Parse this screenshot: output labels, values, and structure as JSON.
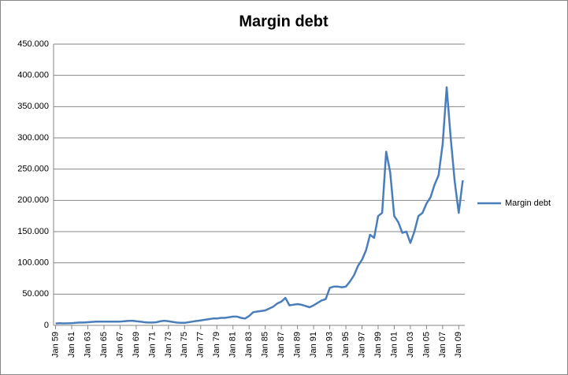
{
  "chart_data": {
    "type": "line",
    "title": "Margin debt",
    "categories": [
      "Jan 59",
      null,
      null,
      null,
      "Jan 61",
      null,
      null,
      null,
      "Jan 63",
      null,
      null,
      null,
      "Jan 65",
      null,
      null,
      null,
      "Jan 67",
      null,
      null,
      null,
      "Jan 69",
      null,
      null,
      null,
      "Jan 71",
      null,
      null,
      null,
      "Jan 73",
      null,
      null,
      null,
      "Jan 75",
      null,
      null,
      null,
      "Jan 77",
      null,
      null,
      null,
      "Jan 79",
      null,
      null,
      null,
      "Jan 81",
      null,
      null,
      null,
      "Jan 83",
      null,
      null,
      null,
      "Jan 85",
      null,
      null,
      null,
      "Jan 87",
      null,
      null,
      null,
      "Jan 89",
      null,
      null,
      null,
      "Jan 91",
      null,
      null,
      null,
      "Jan 93",
      null,
      null,
      null,
      "Jan 95",
      null,
      null,
      null,
      "Jan 97",
      null,
      null,
      null,
      "Jan 99",
      null,
      null,
      null,
      "Jan 01",
      null,
      null,
      null,
      "Jan 03",
      null,
      null,
      null,
      "Jan 05",
      null,
      null,
      null,
      "Jan 07",
      null,
      null,
      null,
      "Jan 09",
      null
    ],
    "series": [
      {
        "name": "Margin debt",
        "color": "#4a7ebb",
        "values": [
          3000,
          3500,
          3200,
          3300,
          3500,
          4000,
          4500,
          4500,
          5000,
          5500,
          6000,
          6000,
          6000,
          6000,
          6000,
          6000,
          6000,
          6500,
          7000,
          7500,
          6500,
          6000,
          5000,
          4500,
          4500,
          5000,
          6500,
          7500,
          6500,
          5500,
          4500,
          4000,
          4000,
          5000,
          6000,
          7000,
          8000,
          9000,
          10000,
          11000,
          11000,
          12000,
          12000,
          13000,
          14000,
          14000,
          12000,
          11000,
          15000,
          21000,
          22000,
          23000,
          24000,
          27000,
          30000,
          35000,
          38000,
          44000,
          32000,
          33000,
          34000,
          33000,
          31000,
          29000,
          32000,
          36000,
          40000,
          42000,
          60000,
          62000,
          62000,
          61000,
          62000,
          70000,
          80000,
          95000,
          105000,
          120000,
          145000,
          140000,
          175000,
          180000,
          278000,
          245000,
          175000,
          165000,
          148000,
          150000,
          132000,
          150000,
          175000,
          180000,
          195000,
          205000,
          225000,
          240000,
          290000,
          381000,
          300000,
          230000,
          180000,
          232000
        ]
      }
    ],
    "ylim": [
      0,
      450000
    ],
    "yticks": [
      0,
      {
        "value": 50000,
        "label": "50.000"
      },
      {
        "value": 100000,
        "label": "100.000"
      },
      {
        "value": 150000,
        "label": "150.000"
      },
      {
        "value": 200000,
        "label": "200.000"
      },
      {
        "value": 250000,
        "label": "250.000"
      },
      {
        "value": 300000,
        "label": "300.000"
      },
      {
        "value": 350000,
        "label": "350.000"
      },
      {
        "value": 400000,
        "label": "400.000"
      },
      {
        "value": 450000,
        "label": "450.000"
      }
    ],
    "grid": true
  }
}
